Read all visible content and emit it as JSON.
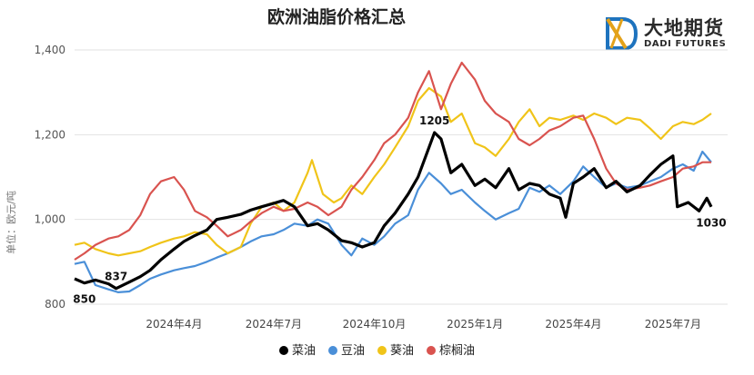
{
  "header": {
    "title": "欧洲油脂价格汇总"
  },
  "logo": {
    "main": "大地期货",
    "sub": "DADI FUTURES",
    "mark": "logo-mark"
  },
  "chart_data": {
    "type": "line",
    "title": "欧洲油脂价格汇总",
    "ylabel": "单位：欧元/吨",
    "xlabel": "",
    "ylim": [
      800,
      1400
    ],
    "yticks": [
      800,
      1000,
      1200,
      1400
    ],
    "ytick_labels": [
      "800",
      "1,000",
      "1,200",
      "1,400"
    ],
    "xlim": [
      "2024-01-01",
      "2025-08-20"
    ],
    "xticks": [
      "2024-04-01",
      "2024-07-01",
      "2024-10-01",
      "2025-01-01",
      "2025-04-01",
      "2025-07-01"
    ],
    "xtick_labels": [
      "2024年4月",
      "2024年7月",
      "2024年10月",
      "2025年1月",
      "2025年4月",
      "2025年7月"
    ],
    "grid": "horizontal",
    "legend": "bottom",
    "series": [
      {
        "name": "菜油",
        "color": "#000000",
        "points": [
          [
            "2024-01-01",
            860
          ],
          [
            "2024-01-10",
            850
          ],
          [
            "2024-01-20",
            857
          ],
          [
            "2024-02-01",
            848
          ],
          [
            "2024-02-08",
            837
          ],
          [
            "2024-02-20",
            852
          ],
          [
            "2024-03-01",
            865
          ],
          [
            "2024-03-10",
            880
          ],
          [
            "2024-03-20",
            905
          ],
          [
            "2024-04-01",
            930
          ],
          [
            "2024-04-10",
            948
          ],
          [
            "2024-04-20",
            962
          ],
          [
            "2024-05-01",
            975
          ],
          [
            "2024-05-10",
            1000
          ],
          [
            "2024-05-20",
            1005
          ],
          [
            "2024-06-01",
            1012
          ],
          [
            "2024-06-10",
            1022
          ],
          [
            "2024-06-20",
            1030
          ],
          [
            "2024-07-01",
            1038
          ],
          [
            "2024-07-10",
            1045
          ],
          [
            "2024-07-20",
            1030
          ],
          [
            "2024-08-01",
            985
          ],
          [
            "2024-08-10",
            990
          ],
          [
            "2024-08-20",
            975
          ],
          [
            "2024-09-01",
            950
          ],
          [
            "2024-09-10",
            945
          ],
          [
            "2024-09-20",
            935
          ],
          [
            "2024-10-01",
            945
          ],
          [
            "2024-10-10",
            985
          ],
          [
            "2024-10-20",
            1015
          ],
          [
            "2024-11-01",
            1060
          ],
          [
            "2024-11-10",
            1100
          ],
          [
            "2024-11-20",
            1170
          ],
          [
            "2024-11-25",
            1205
          ],
          [
            "2024-12-01",
            1190
          ],
          [
            "2024-12-10",
            1110
          ],
          [
            "2024-12-20",
            1130
          ],
          [
            "2025-01-01",
            1080
          ],
          [
            "2025-01-10",
            1095
          ],
          [
            "2025-01-20",
            1075
          ],
          [
            "2025-02-01",
            1120
          ],
          [
            "2025-02-10",
            1070
          ],
          [
            "2025-02-20",
            1085
          ],
          [
            "2025-03-01",
            1080
          ],
          [
            "2025-03-10",
            1060
          ],
          [
            "2025-03-20",
            1050
          ],
          [
            "2025-03-25",
            1005
          ],
          [
            "2025-04-01",
            1085
          ],
          [
            "2025-04-10",
            1100
          ],
          [
            "2025-04-20",
            1120
          ],
          [
            "2025-05-01",
            1075
          ],
          [
            "2025-05-10",
            1090
          ],
          [
            "2025-05-20",
            1065
          ],
          [
            "2025-06-01",
            1080
          ],
          [
            "2025-06-10",
            1105
          ],
          [
            "2025-06-20",
            1130
          ],
          [
            "2025-07-01",
            1150
          ],
          [
            "2025-07-05",
            1030
          ],
          [
            "2025-07-15",
            1040
          ],
          [
            "2025-07-25",
            1020
          ],
          [
            "2025-08-01",
            1050
          ],
          [
            "2025-08-05",
            1030
          ]
        ]
      },
      {
        "name": "豆油",
        "color": "#4a8fd8",
        "points": [
          [
            "2024-01-01",
            895
          ],
          [
            "2024-01-10",
            900
          ],
          [
            "2024-01-20",
            845
          ],
          [
            "2024-02-01",
            835
          ],
          [
            "2024-02-10",
            828
          ],
          [
            "2024-02-20",
            830
          ],
          [
            "2024-03-01",
            845
          ],
          [
            "2024-03-10",
            860
          ],
          [
            "2024-03-20",
            870
          ],
          [
            "2024-04-01",
            880
          ],
          [
            "2024-04-10",
            885
          ],
          [
            "2024-04-20",
            890
          ],
          [
            "2024-05-01",
            900
          ],
          [
            "2024-05-10",
            910
          ],
          [
            "2024-05-20",
            920
          ],
          [
            "2024-06-01",
            935
          ],
          [
            "2024-06-10",
            948
          ],
          [
            "2024-06-20",
            960
          ],
          [
            "2024-07-01",
            965
          ],
          [
            "2024-07-10",
            975
          ],
          [
            "2024-07-20",
            990
          ],
          [
            "2024-08-01",
            985
          ],
          [
            "2024-08-10",
            1000
          ],
          [
            "2024-08-20",
            990
          ],
          [
            "2024-09-01",
            940
          ],
          [
            "2024-09-10",
            915
          ],
          [
            "2024-09-20",
            955
          ],
          [
            "2024-10-01",
            940
          ],
          [
            "2024-10-10",
            960
          ],
          [
            "2024-10-20",
            990
          ],
          [
            "2024-11-01",
            1010
          ],
          [
            "2024-11-10",
            1070
          ],
          [
            "2024-11-20",
            1110
          ],
          [
            "2024-12-01",
            1085
          ],
          [
            "2024-12-10",
            1060
          ],
          [
            "2024-12-20",
            1070
          ],
          [
            "2025-01-01",
            1040
          ],
          [
            "2025-01-10",
            1020
          ],
          [
            "2025-01-20",
            1000
          ],
          [
            "2025-02-01",
            1015
          ],
          [
            "2025-02-10",
            1025
          ],
          [
            "2025-02-20",
            1075
          ],
          [
            "2025-03-01",
            1065
          ],
          [
            "2025-03-10",
            1080
          ],
          [
            "2025-03-20",
            1060
          ],
          [
            "2025-04-01",
            1090
          ],
          [
            "2025-04-10",
            1125
          ],
          [
            "2025-04-20",
            1100
          ],
          [
            "2025-05-01",
            1075
          ],
          [
            "2025-05-10",
            1085
          ],
          [
            "2025-05-20",
            1075
          ],
          [
            "2025-06-01",
            1080
          ],
          [
            "2025-06-10",
            1090
          ],
          [
            "2025-06-20",
            1100
          ],
          [
            "2025-07-01",
            1120
          ],
          [
            "2025-07-10",
            1130
          ],
          [
            "2025-07-20",
            1115
          ],
          [
            "2025-07-28",
            1160
          ],
          [
            "2025-08-05",
            1135
          ]
        ]
      },
      {
        "name": "葵油",
        "color": "#f0c419",
        "points": [
          [
            "2024-01-01",
            940
          ],
          [
            "2024-01-10",
            945
          ],
          [
            "2024-01-20",
            930
          ],
          [
            "2024-02-01",
            920
          ],
          [
            "2024-02-10",
            915
          ],
          [
            "2024-02-20",
            920
          ],
          [
            "2024-03-01",
            925
          ],
          [
            "2024-03-10",
            935
          ],
          [
            "2024-03-20",
            945
          ],
          [
            "2024-04-01",
            955
          ],
          [
            "2024-04-10",
            960
          ],
          [
            "2024-04-20",
            970
          ],
          [
            "2024-05-01",
            965
          ],
          [
            "2024-05-10",
            940
          ],
          [
            "2024-05-20",
            920
          ],
          [
            "2024-06-01",
            935
          ],
          [
            "2024-06-10",
            990
          ],
          [
            "2024-06-20",
            1030
          ],
          [
            "2024-07-01",
            1040
          ],
          [
            "2024-07-10",
            1020
          ],
          [
            "2024-07-20",
            1040
          ],
          [
            "2024-08-01",
            1110
          ],
          [
            "2024-08-05",
            1140
          ],
          [
            "2024-08-15",
            1060
          ],
          [
            "2024-08-25",
            1040
          ],
          [
            "2024-09-01",
            1050
          ],
          [
            "2024-09-10",
            1080
          ],
          [
            "2024-09-20",
            1060
          ],
          [
            "2024-10-01",
            1100
          ],
          [
            "2024-10-10",
            1130
          ],
          [
            "2024-10-20",
            1170
          ],
          [
            "2024-11-01",
            1220
          ],
          [
            "2024-11-10",
            1280
          ],
          [
            "2024-11-20",
            1310
          ],
          [
            "2024-12-01",
            1290
          ],
          [
            "2024-12-10",
            1230
          ],
          [
            "2024-12-20",
            1250
          ],
          [
            "2025-01-01",
            1180
          ],
          [
            "2025-01-10",
            1170
          ],
          [
            "2025-01-20",
            1150
          ],
          [
            "2025-02-01",
            1190
          ],
          [
            "2025-02-10",
            1230
          ],
          [
            "2025-02-20",
            1260
          ],
          [
            "2025-03-01",
            1220
          ],
          [
            "2025-03-10",
            1240
          ],
          [
            "2025-03-20",
            1235
          ],
          [
            "2025-04-01",
            1245
          ],
          [
            "2025-04-10",
            1235
          ],
          [
            "2025-04-20",
            1250
          ],
          [
            "2025-05-01",
            1240
          ],
          [
            "2025-05-10",
            1225
          ],
          [
            "2025-05-20",
            1240
          ],
          [
            "2025-06-01",
            1235
          ],
          [
            "2025-06-10",
            1215
          ],
          [
            "2025-06-20",
            1190
          ],
          [
            "2025-07-01",
            1220
          ],
          [
            "2025-07-10",
            1230
          ],
          [
            "2025-07-20",
            1225
          ],
          [
            "2025-07-28",
            1235
          ],
          [
            "2025-08-05",
            1250
          ]
        ]
      },
      {
        "name": "棕榈油",
        "color": "#d9534f",
        "points": [
          [
            "2024-01-01",
            905
          ],
          [
            "2024-01-10",
            920
          ],
          [
            "2024-01-20",
            940
          ],
          [
            "2024-02-01",
            955
          ],
          [
            "2024-02-10",
            960
          ],
          [
            "2024-02-20",
            975
          ],
          [
            "2024-03-01",
            1010
          ],
          [
            "2024-03-10",
            1060
          ],
          [
            "2024-03-20",
            1090
          ],
          [
            "2024-04-01",
            1100
          ],
          [
            "2024-04-10",
            1070
          ],
          [
            "2024-04-20",
            1020
          ],
          [
            "2024-05-01",
            1005
          ],
          [
            "2024-05-10",
            985
          ],
          [
            "2024-05-20",
            960
          ],
          [
            "2024-06-01",
            975
          ],
          [
            "2024-06-10",
            995
          ],
          [
            "2024-06-20",
            1015
          ],
          [
            "2024-07-01",
            1030
          ],
          [
            "2024-07-10",
            1020
          ],
          [
            "2024-07-20",
            1025
          ],
          [
            "2024-08-01",
            1040
          ],
          [
            "2024-08-10",
            1030
          ],
          [
            "2024-08-20",
            1010
          ],
          [
            "2024-09-01",
            1030
          ],
          [
            "2024-09-10",
            1070
          ],
          [
            "2024-09-20",
            1100
          ],
          [
            "2024-10-01",
            1140
          ],
          [
            "2024-10-10",
            1180
          ],
          [
            "2024-10-20",
            1200
          ],
          [
            "2024-11-01",
            1240
          ],
          [
            "2024-11-10",
            1300
          ],
          [
            "2024-11-20",
            1350
          ],
          [
            "2024-12-01",
            1260
          ],
          [
            "2024-12-10",
            1320
          ],
          [
            "2024-12-20",
            1370
          ],
          [
            "2025-01-01",
            1330
          ],
          [
            "2025-01-10",
            1280
          ],
          [
            "2025-01-20",
            1250
          ],
          [
            "2025-02-01",
            1230
          ],
          [
            "2025-02-10",
            1190
          ],
          [
            "2025-02-20",
            1175
          ],
          [
            "2025-03-01",
            1190
          ],
          [
            "2025-03-10",
            1210
          ],
          [
            "2025-03-20",
            1220
          ],
          [
            "2025-04-01",
            1240
          ],
          [
            "2025-04-10",
            1245
          ],
          [
            "2025-04-20",
            1190
          ],
          [
            "2025-05-01",
            1120
          ],
          [
            "2025-05-10",
            1085
          ],
          [
            "2025-05-20",
            1070
          ],
          [
            "2025-06-01",
            1075
          ],
          [
            "2025-06-10",
            1080
          ],
          [
            "2025-06-20",
            1090
          ],
          [
            "2025-07-01",
            1100
          ],
          [
            "2025-07-10",
            1120
          ],
          [
            "2025-07-20",
            1125
          ],
          [
            "2025-07-28",
            1135
          ],
          [
            "2025-08-05",
            1135
          ]
        ]
      }
    ],
    "annotations": [
      {
        "text": "850",
        "series": "菜油",
        "x": "2024-01-10",
        "y": 850,
        "position": "below"
      },
      {
        "text": "837",
        "series": "菜油",
        "x": "2024-02-08",
        "y": 837,
        "position": "above"
      },
      {
        "text": "1205",
        "series": "菜油",
        "x": "2024-11-25",
        "y": 1205,
        "position": "above"
      },
      {
        "text": "1030",
        "series": "菜油",
        "x": "2025-08-05",
        "y": 1030,
        "position": "below"
      }
    ]
  }
}
